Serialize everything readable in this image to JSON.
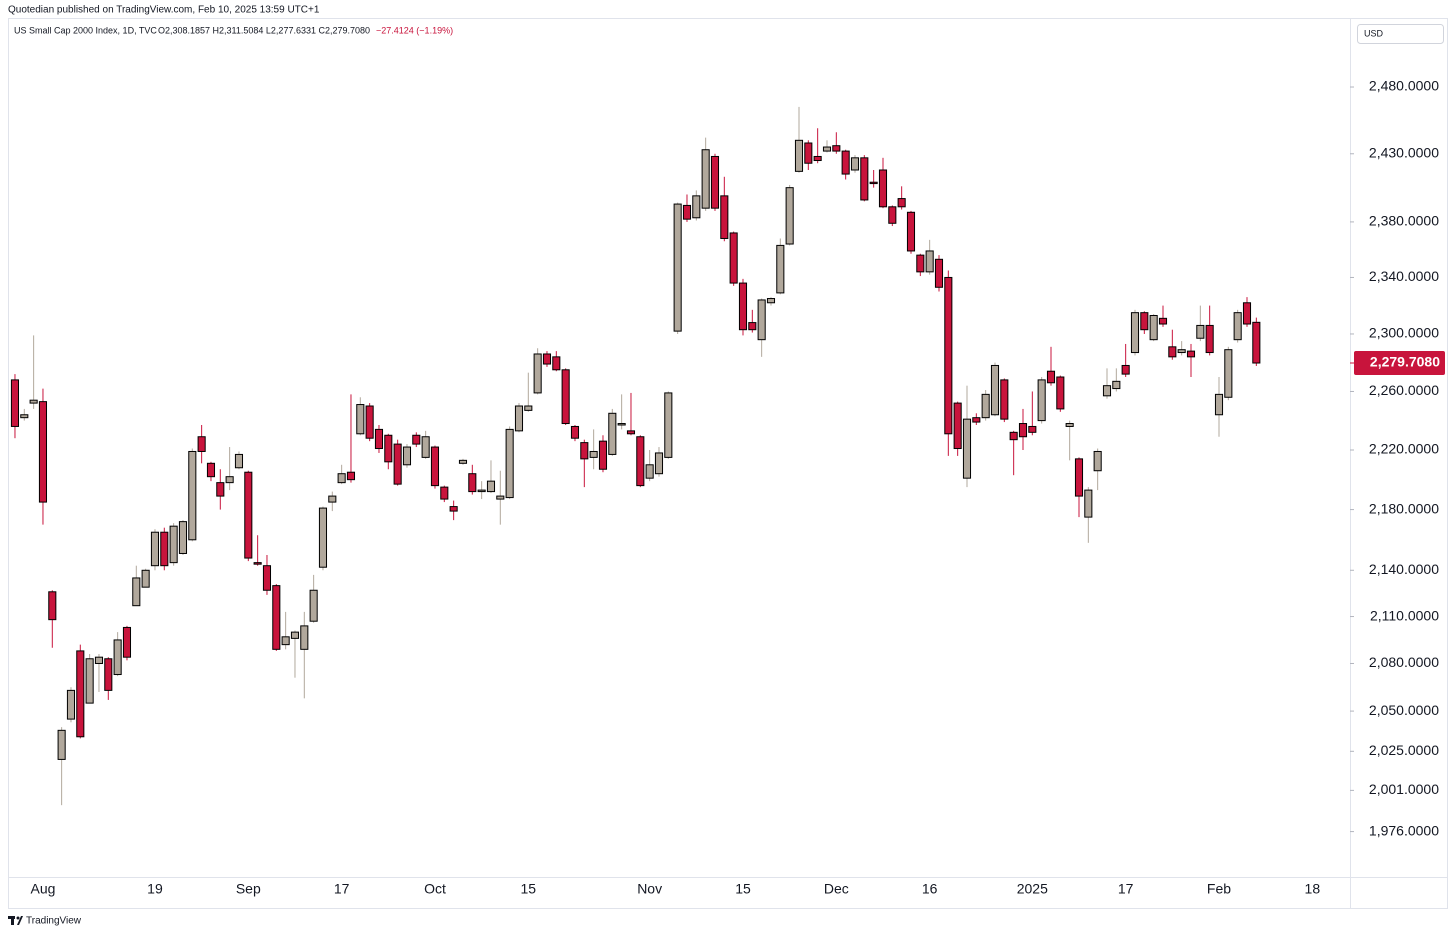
{
  "header": {
    "publisher": "Quotedian published on TradingView.com, Feb 10, 2025 13:59 UTC+1",
    "currency": "USD",
    "footer": "TradingView"
  },
  "chart_data": {
    "type": "candlestick",
    "title": "US Small Cap 2000 Index, 1D, TVC",
    "ohlc_summary": "O2,308.1857 H2,311.5084 L2,277.6331 C2,279.7080",
    "change_text": "−27.4124 (−1.19%)",
    "log_scale": true,
    "grid": false,
    "up_color": "#b1a89c",
    "down_color": "#c8143c",
    "border_color": "#000000",
    "last_price": {
      "value": 2279.708,
      "label": "2,279.7080"
    },
    "ylim": [
      1950,
      2512
    ],
    "yticks": [
      {
        "value": 2480,
        "label": "2,480.0000"
      },
      {
        "value": 2430,
        "label": "2,430.0000"
      },
      {
        "value": 2380,
        "label": "2,380.0000"
      },
      {
        "value": 2340,
        "label": "2,340.0000"
      },
      {
        "value": 2300,
        "label": "2,300.0000"
      },
      {
        "value": 2260,
        "label": "2,260.0000"
      },
      {
        "value": 2220,
        "label": "2,220.0000"
      },
      {
        "value": 2180,
        "label": "2,180.0000"
      },
      {
        "value": 2140,
        "label": "2,140.0000"
      },
      {
        "value": 2110,
        "label": "2,110.0000"
      },
      {
        "value": 2080,
        "label": "2,080.0000"
      },
      {
        "value": 2050,
        "label": "2,050.0000"
      },
      {
        "value": 2025,
        "label": "2,025.0000"
      },
      {
        "value": 2001,
        "label": "2,001.0000"
      },
      {
        "value": 1976,
        "label": "1,976.0000"
      }
    ],
    "categories": [
      null,
      null,
      null,
      "Aug",
      null,
      null,
      null,
      null,
      null,
      null,
      null,
      null,
      null,
      null,
      null,
      "19",
      null,
      null,
      null,
      null,
      null,
      null,
      null,
      null,
      null,
      "Sep",
      null,
      null,
      null,
      null,
      null,
      null,
      null,
      null,
      null,
      "17",
      null,
      null,
      null,
      null,
      null,
      null,
      null,
      null,
      null,
      "Oct",
      null,
      null,
      null,
      null,
      null,
      null,
      null,
      null,
      null,
      "15",
      null,
      null,
      null,
      null,
      null,
      null,
      null,
      null,
      null,
      null,
      null,
      null,
      "Nov",
      null,
      null,
      null,
      null,
      null,
      null,
      null,
      null,
      null,
      "15",
      null,
      null,
      null,
      null,
      null,
      null,
      null,
      null,
      null,
      "Dec",
      null,
      null,
      null,
      null,
      null,
      null,
      null,
      null,
      null,
      "16",
      null,
      null,
      null,
      null,
      null,
      null,
      null,
      null,
      null,
      null,
      "2025",
      null,
      null,
      null,
      null,
      null,
      null,
      null,
      null,
      null,
      "17",
      null,
      null,
      null,
      null,
      null,
      null,
      null,
      null,
      null,
      "Feb",
      null,
      null,
      null,
      null,
      null,
      null,
      null,
      null,
      null,
      "18"
    ],
    "open": [
      2268,
      2242,
      2252,
      2253,
      2126,
      2020,
      2045,
      2088,
      2055,
      2080,
      2083,
      2073,
      2103,
      2117,
      2129,
      2143,
      2165,
      2145,
      2151,
      2160,
      2229,
      2211,
      2198,
      2198,
      2208,
      2205,
      2145,
      2143,
      2130,
      2092,
      2096,
      2089,
      2107,
      2142,
      2185,
      2198,
      2205,
      2231,
      2250,
      2234,
      2230,
      2224,
      2210,
      2230,
      2215,
      2222,
      2195,
      2182,
      2211,
      2204,
      2192,
      2192,
      2187,
      2188,
      2233,
      2247,
      2259,
      2286,
      2284,
      2275,
      2236,
      2225,
      2215,
      2226,
      2217,
      2237,
      2233,
      2229,
      2201,
      2204,
      2215,
      2302,
      2392,
      2383,
      2390,
      2428,
      2399,
      2372,
      2336,
      2308,
      2296,
      2322,
      2329,
      2364,
      2417,
      2438,
      2428,
      2432,
      2436,
      2432,
      2418,
      2427,
      2409,
      2418,
      2391,
      2397,
      2387,
      2356,
      2344,
      2353,
      2340,
      2252,
      2201,
      2242,
      2242,
      2244,
      2268,
      2232,
      2238,
      2236,
      2240,
      2274,
      2270,
      2236,
      2214,
      2175,
      2206,
      2257,
      2262,
      2278,
      2287,
      2315,
      2296,
      2311,
      2291,
      2287,
      2288,
      2297,
      2306,
      2244,
      2256,
      2296,
      2322,
      2308.1857,
      null,
      null,
      null,
      null,
      null,
      null
    ],
    "high": [
      2272,
      2248,
      2299,
      2262,
      2127,
      2040,
      2065,
      2092,
      2086,
      2086,
      2084,
      2100,
      2104,
      2143,
      2141,
      2167,
      2168,
      2171,
      2173,
      2221,
      2237,
      2212,
      2207,
      2222,
      2219,
      2206,
      2163,
      2150,
      2131,
      2113,
      2101,
      2113,
      2137,
      2182,
      2192,
      2210,
      2258,
      2256,
      2252,
      2237,
      2231,
      2227,
      2224,
      2232,
      2233,
      2223,
      2196,
      2186,
      2214,
      2210,
      2199,
      2213,
      2206,
      2236,
      2252,
      2273,
      2290,
      2288,
      2288,
      2276,
      2237,
      2227,
      2234,
      2230,
      2248,
      2258,
      2259,
      2230,
      2220,
      2222,
      2260,
      2394,
      2400,
      2403,
      2442,
      2430,
      2413,
      2373,
      2339,
      2317,
      2325,
      2326,
      2368,
      2407,
      2465,
      2440,
      2449,
      2440,
      2446,
      2433,
      2429,
      2429,
      2418,
      2427,
      2392,
      2406,
      2388,
      2357,
      2367,
      2356,
      2345,
      2253,
      2264,
      2245,
      2261,
      2280,
      2269,
      2233,
      2248,
      2260,
      2270,
      2291,
      2271,
      2240,
      2215,
      2195,
      2221,
      2276,
      2276,
      2293,
      2317,
      2316,
      2314,
      2320,
      2303,
      2295,
      2293,
      2320,
      2320,
      2270,
      2291,
      2317,
      2326,
      2311.5084,
      null,
      null,
      null,
      null,
      null,
      null
    ],
    "low": [
      2228,
      2240,
      2248,
      2170,
      2090,
      1992,
      2043,
      2033,
      2055,
      2062,
      2057,
      2072,
      2082,
      2117,
      2129,
      2140,
      2140,
      2143,
      2150,
      2159,
      2211,
      2199,
      2180,
      2193,
      2207,
      2146,
      2143,
      2124,
      2088,
      2089,
      2071,
      2058,
      2106,
      2140,
      2179,
      2197,
      2198,
      2230,
      2226,
      2218,
      2207,
      2196,
      2208,
      2222,
      2214,
      2194,
      2185,
      2173,
      2210,
      2190,
      2187,
      2191,
      2170,
      2187,
      2232,
      2246,
      2258,
      2277,
      2274,
      2237,
      2226,
      2195,
      2207,
      2205,
      2216,
      2234,
      2230,
      2195,
      2199,
      2202,
      2214,
      2300,
      2380,
      2381,
      2388,
      2388,
      2366,
      2334,
      2299,
      2301,
      2284,
      2320,
      2328,
      2363,
      2416,
      2418,
      2423,
      2431,
      2430,
      2411,
      2416,
      2395,
      2405,
      2390,
      2377,
      2389,
      2357,
      2341,
      2342,
      2330,
      2216,
      2216,
      2195,
      2237,
      2240,
      2243,
      2239,
      2203,
      2220,
      2230,
      2238,
      2264,
      2246,
      2213,
      2175,
      2158,
      2193,
      2255,
      2260,
      2270,
      2285,
      2300,
      2295,
      2305,
      2282,
      2285,
      2270,
      2295,
      2285,
      2229,
      2254,
      2294,
      2305,
      2277.6331,
      null,
      null,
      null,
      null,
      null,
      null
    ],
    "close": [
      2236,
      2244,
      2254,
      2185,
      2108,
      2038,
      2063,
      2034,
      2083,
      2084,
      2063,
      2095,
      2084,
      2135,
      2140,
      2165,
      2143,
      2169,
      2172,
      2219,
      2219,
      2202,
      2189,
      2202,
      2217,
      2148,
      2144,
      2127,
      2089,
      2097,
      2100,
      2104,
      2127,
      2181,
      2189,
      2204,
      2200,
      2251,
      2228,
      2221,
      2212,
      2197,
      2222,
      2224,
      2229,
      2196,
      2187,
      2179,
      2213,
      2192,
      2193,
      2199,
      2189,
      2234,
      2250,
      2250,
      2286,
      2279,
      2275,
      2238,
      2228,
      2214,
      2219,
      2207,
      2245,
      2238,
      2231,
      2196,
      2210,
      2218,
      2259,
      2393,
      2382,
      2399,
      2433,
      2390,
      2368,
      2336,
      2303,
      2303,
      2324,
      2325,
      2363,
      2405,
      2440,
      2423,
      2425,
      2435,
      2432,
      2415,
      2427,
      2396,
      2408,
      2391,
      2379,
      2391,
      2359,
      2344,
      2359,
      2333,
      2231,
      2221,
      2241,
      2239,
      2258,
      2278,
      2241,
      2227,
      2229,
      2232,
      2268,
      2266,
      2248,
      2238,
      2189,
      2193,
      2219,
      2264,
      2267,
      2272,
      2315,
      2303,
      2313,
      2307,
      2284,
      2289,
      2284,
      2306,
      2287,
      2258,
      2289,
      2315,
      2307,
      2279.708,
      null,
      null,
      null,
      null,
      null,
      null
    ]
  }
}
